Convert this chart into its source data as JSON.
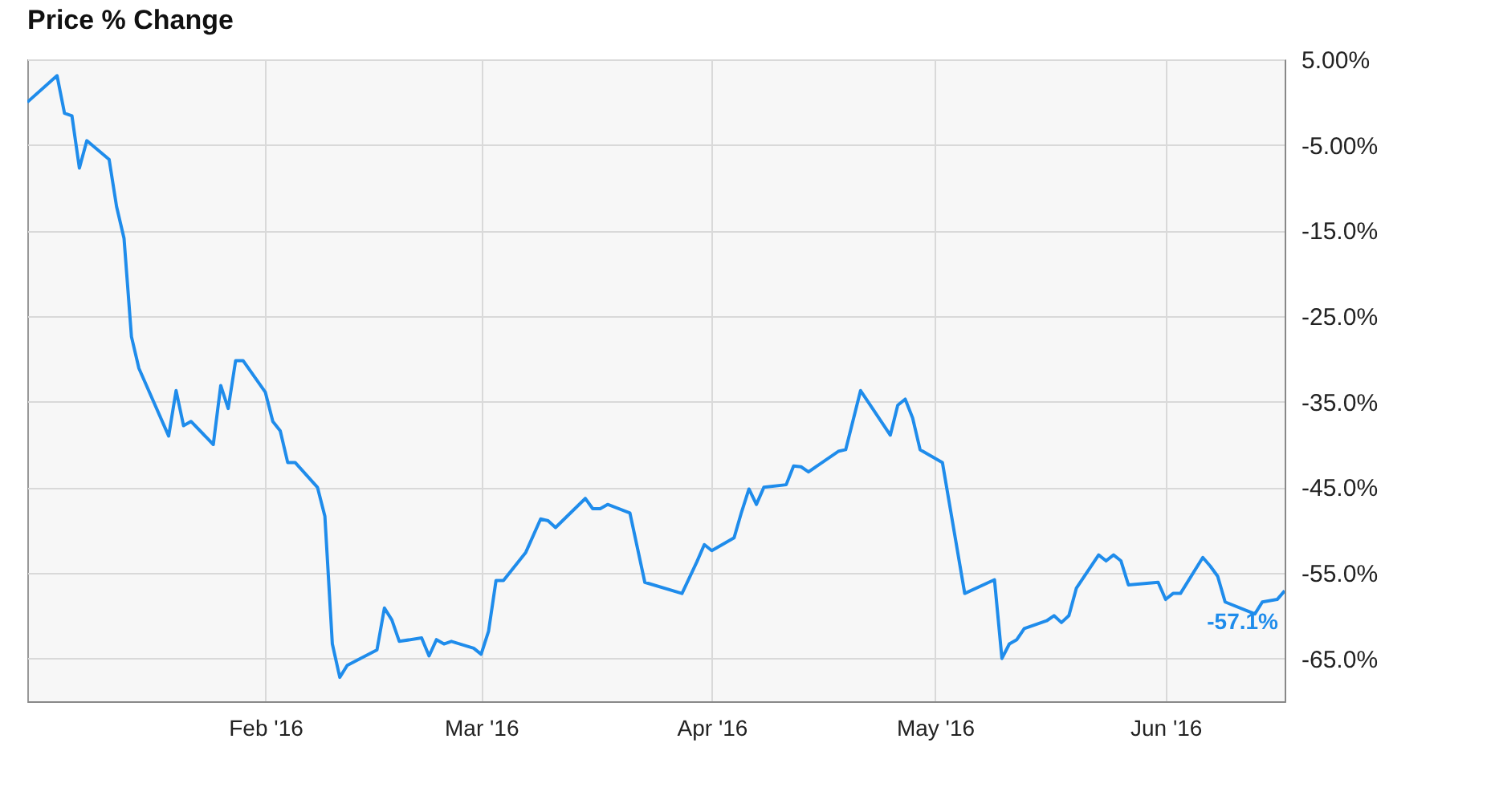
{
  "chart_data": {
    "type": "line",
    "title": "Price % Change",
    "x": [
      "2015-12-31",
      "2016-01-04",
      "2016-01-05",
      "2016-01-06",
      "2016-01-07",
      "2016-01-08",
      "2016-01-11",
      "2016-01-12",
      "2016-01-13",
      "2016-01-14",
      "2016-01-15",
      "2016-01-19",
      "2016-01-20",
      "2016-01-21",
      "2016-01-22",
      "2016-01-25",
      "2016-01-26",
      "2016-01-27",
      "2016-01-28",
      "2016-01-29",
      "2016-02-01",
      "2016-02-02",
      "2016-02-03",
      "2016-02-04",
      "2016-02-05",
      "2016-02-08",
      "2016-02-09",
      "2016-02-10",
      "2016-02-11",
      "2016-02-12",
      "2016-02-16",
      "2016-02-17",
      "2016-02-18",
      "2016-02-19",
      "2016-02-22",
      "2016-02-23",
      "2016-02-24",
      "2016-02-25",
      "2016-02-26",
      "2016-02-29",
      "2016-03-01",
      "2016-03-02",
      "2016-03-03",
      "2016-03-04",
      "2016-03-07",
      "2016-03-09",
      "2016-03-10",
      "2016-03-11",
      "2016-03-15",
      "2016-03-16",
      "2016-03-17",
      "2016-03-18",
      "2016-03-21",
      "2016-03-23",
      "2016-03-28",
      "2016-03-30",
      "2016-03-31",
      "2016-04-01",
      "2016-04-04",
      "2016-04-05",
      "2016-04-06",
      "2016-04-07",
      "2016-04-08",
      "2016-04-11",
      "2016-04-12",
      "2016-04-13",
      "2016-04-14",
      "2016-04-18",
      "2016-04-19",
      "2016-04-21",
      "2016-04-25",
      "2016-04-26",
      "2016-04-27",
      "2016-04-28",
      "2016-04-29",
      "2016-05-02",
      "2016-05-05",
      "2016-05-09",
      "2016-05-10",
      "2016-05-11",
      "2016-05-12",
      "2016-05-13",
      "2016-05-16",
      "2016-05-17",
      "2016-05-18",
      "2016-05-19",
      "2016-05-20",
      "2016-05-23",
      "2016-05-24",
      "2016-05-25",
      "2016-05-26",
      "2016-05-27",
      "2016-05-31",
      "2016-06-01",
      "2016-06-02",
      "2016-06-03",
      "2016-06-06",
      "2016-06-07",
      "2016-06-08",
      "2016-06-09",
      "2016-06-13",
      "2016-06-14",
      "2016-06-16",
      "2016-06-17"
    ],
    "series": [
      {
        "color": "#1f8ceb",
        "values": [
          0,
          3.1,
          -1.3,
          -1.6,
          -7.7,
          -4.5,
          -6.7,
          -12.2,
          -15.9,
          -27.4,
          -31.1,
          -39.0,
          -33.7,
          -37.8,
          -37.3,
          -40.0,
          -33.1,
          -35.8,
          -30.2,
          -30.2,
          -33.9,
          -37.3,
          -38.4,
          -42.1,
          -42.1,
          -45.0,
          -48.4,
          -63.3,
          -67.2,
          -65.8,
          -64.0,
          -59.1,
          -60.5,
          -63.0,
          -62.6,
          -64.7,
          -62.8,
          -63.3,
          -63.0,
          -63.8,
          -64.5,
          -61.8,
          -55.9,
          -55.9,
          -52.6,
          -48.7,
          -48.9,
          -49.7,
          -46.3,
          -47.5,
          -47.5,
          -47.0,
          -48.0,
          -56.1,
          -57.4,
          -53.7,
          -51.7,
          -52.4,
          -50.9,
          -47.9,
          -45.2,
          -47.0,
          -45.0,
          -44.7,
          -42.5,
          -42.6,
          -43.2,
          -40.8,
          -40.6,
          -33.7,
          -38.9,
          -35.4,
          -34.7,
          -36.9,
          -40.6,
          -42.1,
          -57.4,
          -55.8,
          -65.0,
          -63.3,
          -62.8,
          -61.5,
          -60.6,
          -60.0,
          -60.8,
          -60.0,
          -56.8,
          -52.9,
          -53.6,
          -52.9,
          -53.6,
          -56.4,
          -56.1,
          -58.1,
          -57.4,
          -57.4,
          -53.2,
          -54.2,
          -55.4,
          -58.4,
          -59.8,
          -58.4,
          -58.1,
          -57.1
        ]
      }
    ],
    "xlim": [
      "2015-12-31",
      "2016-06-17"
    ],
    "xticks": [
      {
        "value": "2016-02-01",
        "label": "Feb '16"
      },
      {
        "value": "2016-03-01",
        "label": "Mar '16"
      },
      {
        "value": "2016-04-01",
        "label": "Apr '16"
      },
      {
        "value": "2016-05-01",
        "label": "May '16"
      },
      {
        "value": "2016-06-01",
        "label": "Jun '16"
      }
    ],
    "ylim": [
      -70,
      5
    ],
    "yticks": [
      {
        "value": 5,
        "label": "5.00%"
      },
      {
        "value": -5,
        "label": "-5.00%"
      },
      {
        "value": -15,
        "label": "-15.0%"
      },
      {
        "value": -25,
        "label": "-25.0%"
      },
      {
        "value": -35,
        "label": "-35.0%"
      },
      {
        "value": -45,
        "label": "-45.0%"
      },
      {
        "value": -55,
        "label": "-55.0%"
      },
      {
        "value": -65,
        "label": "-65.0%"
      }
    ],
    "grid": true,
    "annotations": [
      {
        "text": "-57.1%",
        "x": "2016-06-17",
        "y": -57.1
      }
    ]
  }
}
